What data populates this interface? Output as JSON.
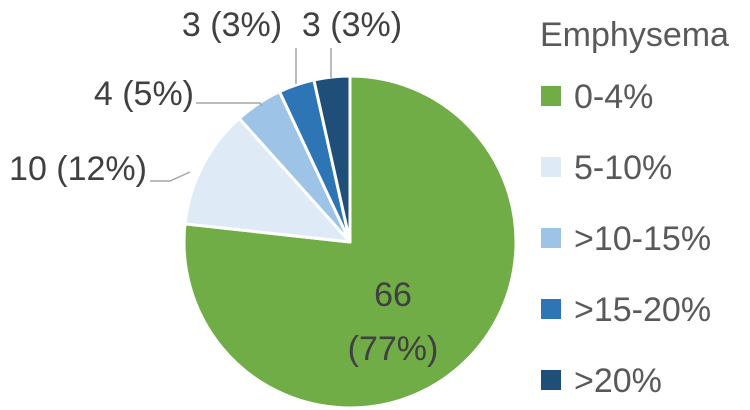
{
  "chart_data": {
    "type": "pie",
    "legend_title": "Emphysema",
    "legend_position": "right",
    "slices": [
      {
        "category": "0-4%",
        "value": 66,
        "percent": "77%",
        "label_line1": "66",
        "label_line2": "(77%)",
        "color": "#70AD47"
      },
      {
        "category": "5-10%",
        "value": 10,
        "percent": "12%",
        "label_line1": "10 (12%)",
        "color": "#DEEBF7"
      },
      {
        "category": ">10-15%",
        "value": 4,
        "percent": "5%",
        "label_line1": "4 (5%)",
        "color": "#9DC3E6"
      },
      {
        "category": ">15-20%",
        "value": 3,
        "percent": "3%",
        "label_line1": "3 (3%)",
        "color": "#2E75B6"
      },
      {
        "category": ">20%",
        "value": 3,
        "percent": "3%",
        "label_line1": "3 (3%)",
        "color": "#1F4E79"
      }
    ]
  }
}
